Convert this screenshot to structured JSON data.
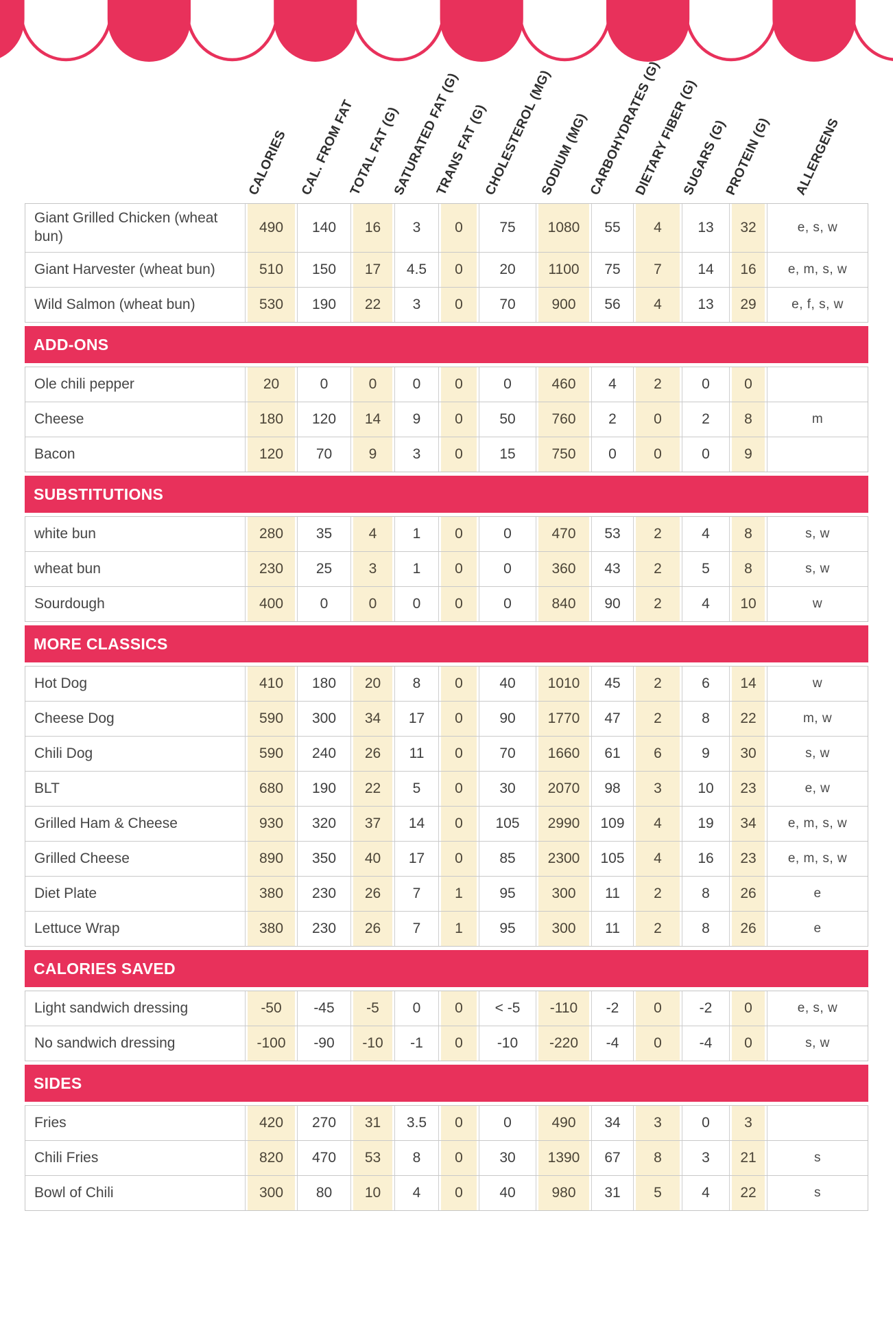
{
  "colors": {
    "accent": "#E8315B",
    "highlight": "#FAF0D2"
  },
  "table": {
    "columns": [
      {
        "label": "CALORIES",
        "highlight": true
      },
      {
        "label": "CAL. FROM FAT",
        "highlight": false
      },
      {
        "label": "TOTAL FAT (G)",
        "highlight": true
      },
      {
        "label": "SATURATED FAT (G)",
        "highlight": false
      },
      {
        "label": "TRANS FAT (G)",
        "highlight": true
      },
      {
        "label": "CHOLESTEROL (MG)",
        "highlight": false
      },
      {
        "label": "SODIUM (MG)",
        "highlight": true
      },
      {
        "label": "CARBOHYDRATES (G)",
        "highlight": false
      },
      {
        "label": "DIETARY FIBER (G)",
        "highlight": true
      },
      {
        "label": "SUGARS (G)",
        "highlight": false
      },
      {
        "label": "PROTEIN (G)",
        "highlight": true
      },
      {
        "label": "ALLERGENS",
        "highlight": false
      }
    ],
    "sections": [
      {
        "title": "",
        "rows": [
          {
            "name": "Giant Grilled Chicken (wheat bun)",
            "values": [
              "490",
              "140",
              "16",
              "3",
              "0",
              "75",
              "1080",
              "55",
              "4",
              "13",
              "32"
            ],
            "allergens": "e, s, w"
          },
          {
            "name": "Giant Harvester (wheat bun)",
            "values": [
              "510",
              "150",
              "17",
              "4.5",
              "0",
              "20",
              "1100",
              "75",
              "7",
              "14",
              "16"
            ],
            "allergens": "e, m, s, w"
          },
          {
            "name": "Wild Salmon (wheat bun)",
            "values": [
              "530",
              "190",
              "22",
              "3",
              "0",
              "70",
              "900",
              "56",
              "4",
              "13",
              "29"
            ],
            "allergens": "e, f, s, w"
          }
        ]
      },
      {
        "title": "ADD-ONS",
        "rows": [
          {
            "name": "Ole chili pepper",
            "values": [
              "20",
              "0",
              "0",
              "0",
              "0",
              "0",
              "460",
              "4",
              "2",
              "0",
              "0"
            ],
            "allergens": ""
          },
          {
            "name": "Cheese",
            "values": [
              "180",
              "120",
              "14",
              "9",
              "0",
              "50",
              "760",
              "2",
              "0",
              "2",
              "8"
            ],
            "allergens": "m"
          },
          {
            "name": "Bacon",
            "values": [
              "120",
              "70",
              "9",
              "3",
              "0",
              "15",
              "750",
              "0",
              "0",
              "0",
              "9"
            ],
            "allergens": ""
          }
        ]
      },
      {
        "title": "SUBSTITUTIONS",
        "rows": [
          {
            "name": "white bun",
            "values": [
              "280",
              "35",
              "4",
              "1",
              "0",
              "0",
              "470",
              "53",
              "2",
              "4",
              "8"
            ],
            "allergens": "s, w"
          },
          {
            "name": "wheat bun",
            "values": [
              "230",
              "25",
              "3",
              "1",
              "0",
              "0",
              "360",
              "43",
              "2",
              "5",
              "8"
            ],
            "allergens": "s, w"
          },
          {
            "name": "Sourdough",
            "values": [
              "400",
              "0",
              "0",
              "0",
              "0",
              "0",
              "840",
              "90",
              "2",
              "4",
              "10"
            ],
            "allergens": "w"
          }
        ]
      },
      {
        "title": "MORE CLASSICS",
        "rows": [
          {
            "name": "Hot Dog",
            "values": [
              "410",
              "180",
              "20",
              "8",
              "0",
              "40",
              "1010",
              "45",
              "2",
              "6",
              "14"
            ],
            "allergens": "w"
          },
          {
            "name": "Cheese Dog",
            "values": [
              "590",
              "300",
              "34",
              "17",
              "0",
              "90",
              "1770",
              "47",
              "2",
              "8",
              "22"
            ],
            "allergens": "m, w"
          },
          {
            "name": "Chili Dog",
            "values": [
              "590",
              "240",
              "26",
              "11",
              "0",
              "70",
              "1660",
              "61",
              "6",
              "9",
              "30"
            ],
            "allergens": "s, w"
          },
          {
            "name": "BLT",
            "values": [
              "680",
              "190",
              "22",
              "5",
              "0",
              "30",
              "2070",
              "98",
              "3",
              "10",
              "23"
            ],
            "allergens": "e, w"
          },
          {
            "name": "Grilled Ham & Cheese",
            "values": [
              "930",
              "320",
              "37",
              "14",
              "0",
              "105",
              "2990",
              "109",
              "4",
              "19",
              "34"
            ],
            "allergens": "e, m, s, w"
          },
          {
            "name": "Grilled Cheese",
            "values": [
              "890",
              "350",
              "40",
              "17",
              "0",
              "85",
              "2300",
              "105",
              "4",
              "16",
              "23"
            ],
            "allergens": "e, m, s, w"
          },
          {
            "name": "Diet Plate",
            "values": [
              "380",
              "230",
              "26",
              "7",
              "1",
              "95",
              "300",
              "11",
              "2",
              "8",
              "26"
            ],
            "allergens": "e"
          },
          {
            "name": "Lettuce Wrap",
            "values": [
              "380",
              "230",
              "26",
              "7",
              "1",
              "95",
              "300",
              "11",
              "2",
              "8",
              "26"
            ],
            "allergens": "e"
          }
        ]
      },
      {
        "title": "CALORIES SAVED",
        "rows": [
          {
            "name": "Light sandwich dressing",
            "values": [
              "-50",
              "-45",
              "-5",
              "0",
              "0",
              "< -5",
              "-110",
              "-2",
              "0",
              "-2",
              "0"
            ],
            "allergens": "e, s, w"
          },
          {
            "name": "No sandwich dressing",
            "values": [
              "-100",
              "-90",
              "-10",
              "-1",
              "0",
              "-10",
              "-220",
              "-4",
              "0",
              "-4",
              "0"
            ],
            "allergens": "s, w"
          }
        ]
      },
      {
        "title": "SIDES",
        "rows": [
          {
            "name": "Fries",
            "values": [
              "420",
              "270",
              "31",
              "3.5",
              "0",
              "0",
              "490",
              "34",
              "3",
              "0",
              "3"
            ],
            "allergens": ""
          },
          {
            "name": "Chili Fries",
            "values": [
              "820",
              "470",
              "53",
              "8",
              "0",
              "30",
              "1390",
              "67",
              "8",
              "3",
              "21"
            ],
            "allergens": "s"
          },
          {
            "name": "Bowl of Chili",
            "values": [
              "300",
              "80",
              "10",
              "4",
              "0",
              "40",
              "980",
              "31",
              "5",
              "4",
              "22"
            ],
            "allergens": "s"
          }
        ]
      }
    ]
  }
}
